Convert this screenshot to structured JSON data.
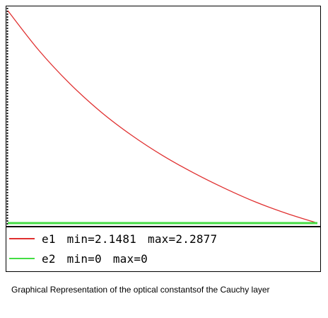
{
  "chart_data": {
    "type": "line",
    "title": "",
    "xlabel": "",
    "ylabel": "",
    "grid": false,
    "legend_position": "bottom",
    "x": [
      0,
      0.1,
      0.2,
      0.3,
      0.4,
      0.5,
      0.6,
      0.7,
      0.8,
      0.9,
      1.0
    ],
    "ylim": [
      2.1481,
      2.2877
    ],
    "series": [
      {
        "name": "e1",
        "color": "#e03030",
        "min_label": "min=2.1481",
        "max_label": "max=2.2877",
        "values": [
          2.2877,
          2.2617,
          2.2398,
          2.2213,
          2.2058,
          2.1925,
          2.1811,
          2.171,
          2.162,
          2.1545,
          2.1481
        ]
      },
      {
        "name": "e2",
        "color": "#44dd44",
        "min_label": "min=0",
        "max_label": "max=0",
        "values": [
          0,
          0,
          0,
          0,
          0,
          0,
          0,
          0,
          0,
          0,
          0
        ]
      }
    ]
  },
  "caption": "Graphical Representation of the optical constantsof the Cauchy layer"
}
